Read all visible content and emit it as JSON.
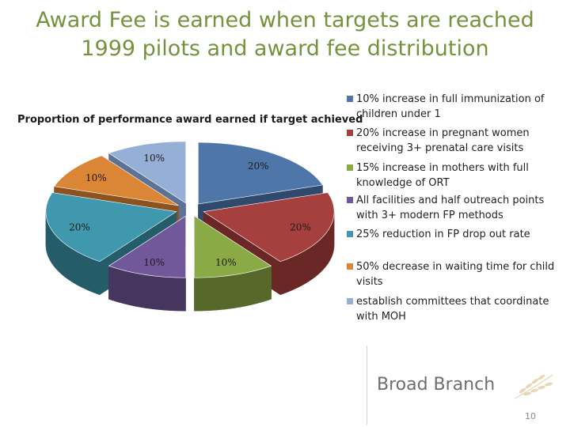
{
  "slide": {
    "title_line1": "Award Fee is earned when targets are reached",
    "title_line2": "1999 pilots and award fee distribution",
    "brand": "Broad Branch",
    "page_number": "10"
  },
  "chart_data": {
    "type": "pie",
    "title": "Proportion of performance award earned if target achieved",
    "legend_position": "right",
    "slices": [
      {
        "name": "10% increase in full immunization of children under 1",
        "value": 20,
        "label": "20%",
        "color": "#4f76a8",
        "side": "#2f4a6d"
      },
      {
        "name": "20% increase in pregnant women receiving 3+ prenatal care visits",
        "value": 20,
        "label": "20%",
        "color": "#a5403e",
        "side": "#6b2726"
      },
      {
        "name": "15% increase in mothers with full knowledge of ORT",
        "value": 10,
        "label": "10%",
        "color": "#8aaa45",
        "side": "#56692a"
      },
      {
        "name": "All facilities and half outreach points with 3+ modern FP methods",
        "value": 10,
        "label": "10%",
        "color": "#71589a",
        "side": "#45355f"
      },
      {
        "name": "25% reduction in FP drop out rate",
        "value": 20,
        "label": "20%",
        "color": "#3f98ad",
        "side": "#255c69"
      },
      {
        "name": "50% decrease in waiting time for child visits",
        "value": 10,
        "label": "10%",
        "color": "#db8537",
        "side": "#8c5220"
      },
      {
        "name": "establish committees that coordinate with MOH",
        "value": 10,
        "label": "10%",
        "color": "#95afd6",
        "side": "#5d7396"
      }
    ]
  }
}
